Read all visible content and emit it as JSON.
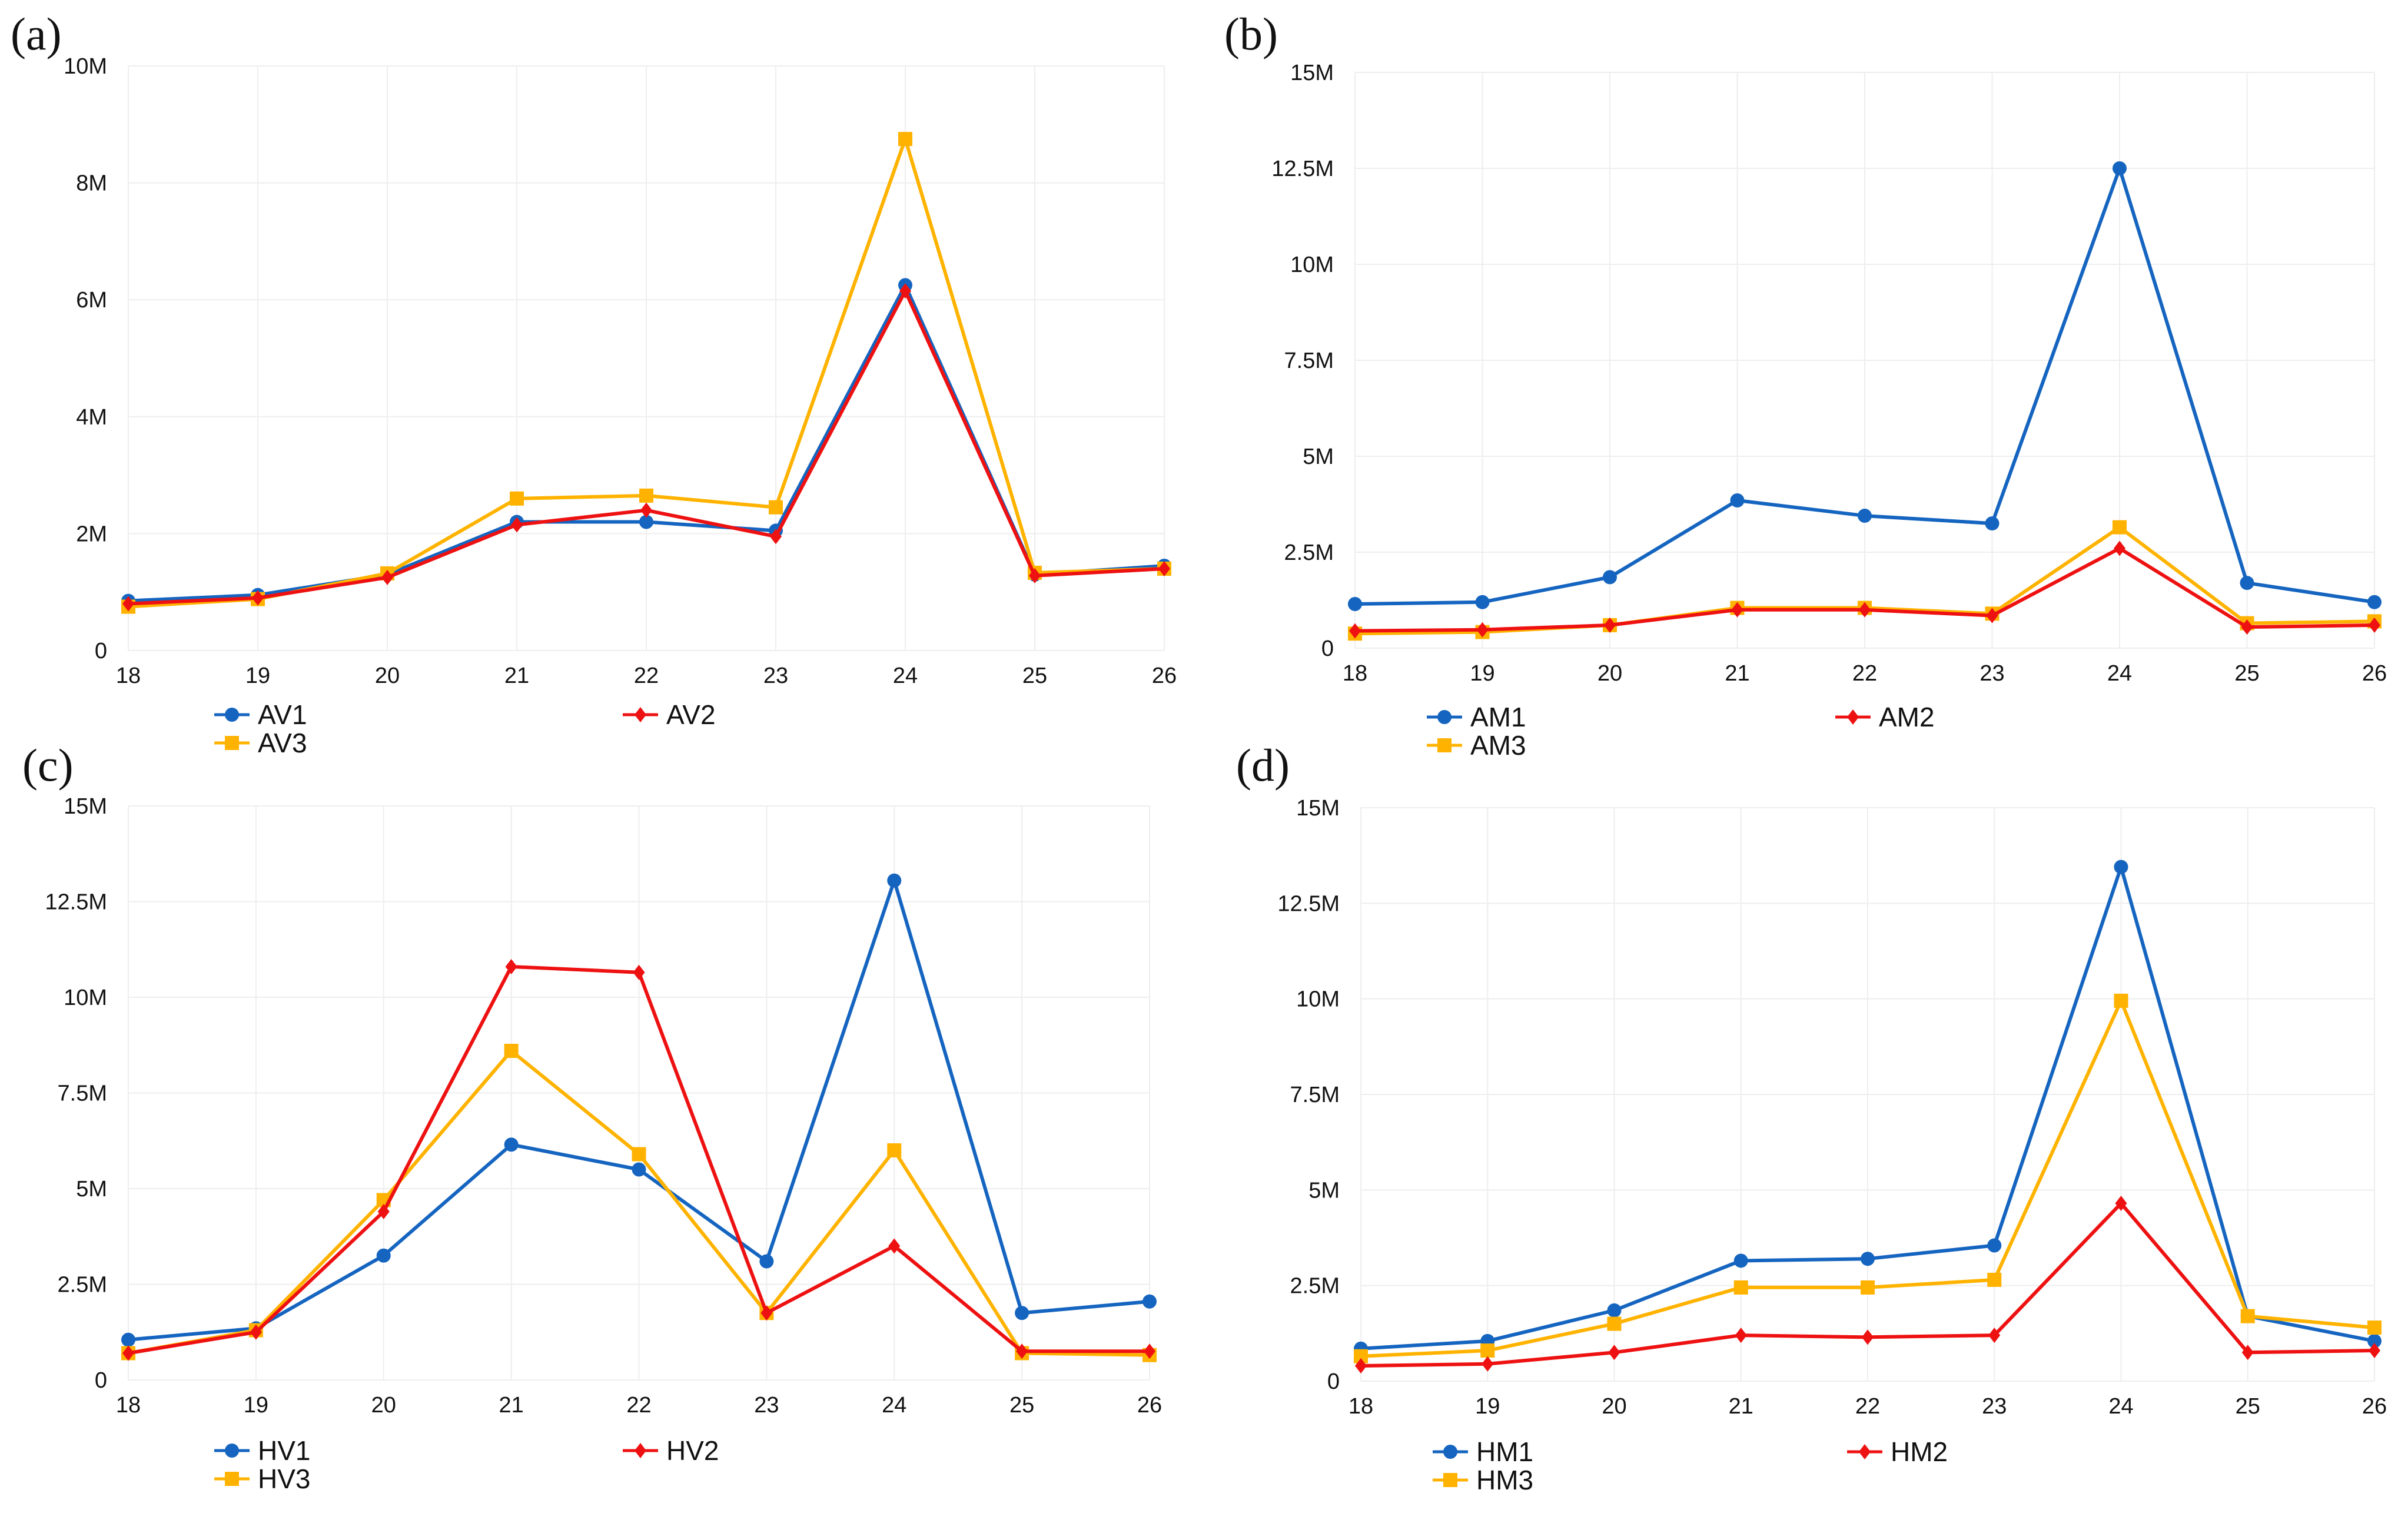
{
  "figure": {
    "panels": [
      "(a)",
      "(b)",
      "(c)",
      "(d)"
    ]
  },
  "colors": {
    "series1": "#1565c0",
    "series2": "#ee1111",
    "series3": "#ffb300"
  },
  "chart_data": [
    {
      "panel": "(a)",
      "type": "line",
      "x": [
        18,
        19,
        20,
        21,
        22,
        23,
        24,
        25,
        26
      ],
      "x_tick_labels": [
        "18",
        "19",
        "20",
        "21",
        "22",
        "23",
        "24",
        "25",
        "26"
      ],
      "ylim": [
        0,
        10000000
      ],
      "yticks": [
        0,
        2000000,
        4000000,
        6000000,
        8000000,
        10000000
      ],
      "ytick_labels": [
        "0",
        "2M",
        "4M",
        "6M",
        "8M",
        "10M"
      ],
      "legend_position": "bottom",
      "series": [
        {
          "name": "AV1",
          "marker": "circle",
          "color": "#1565c0",
          "values": [
            850000,
            950000,
            1300000,
            2200000,
            2200000,
            2050000,
            6250000,
            1300000,
            1450000
          ]
        },
        {
          "name": "AV2",
          "marker": "diamond",
          "color": "#ee1111",
          "values": [
            800000,
            900000,
            1250000,
            2150000,
            2400000,
            1950000,
            6150000,
            1280000,
            1400000
          ]
        },
        {
          "name": "AV3",
          "marker": "square",
          "color": "#ffb300",
          "values": [
            750000,
            880000,
            1320000,
            2600000,
            2650000,
            2450000,
            8750000,
            1330000,
            1400000
          ]
        }
      ]
    },
    {
      "panel": "(b)",
      "type": "line",
      "x": [
        18,
        19,
        20,
        21,
        22,
        23,
        24,
        25,
        26
      ],
      "x_tick_labels": [
        "18",
        "19",
        "20",
        "21",
        "22",
        "23",
        "24",
        "25",
        "26"
      ],
      "ylim": [
        0,
        15000000
      ],
      "yticks": [
        0,
        2500000,
        5000000,
        7500000,
        10000000,
        12500000,
        15000000
      ],
      "ytick_labels": [
        "0",
        "2.5M",
        "5M",
        "7.5M",
        "10M",
        "12.5M",
        "15M"
      ],
      "legend_position": "bottom",
      "series": [
        {
          "name": "AM1",
          "marker": "circle",
          "color": "#1565c0",
          "values": [
            1150000,
            1200000,
            1850000,
            3850000,
            3450000,
            3250000,
            12500000,
            1700000,
            1200000
          ]
        },
        {
          "name": "AM2",
          "marker": "diamond",
          "color": "#ee1111",
          "values": [
            450000,
            480000,
            600000,
            1000000,
            1000000,
            850000,
            2600000,
            550000,
            600000
          ]
        },
        {
          "name": "AM3",
          "marker": "square",
          "color": "#ffb300",
          "values": [
            380000,
            420000,
            600000,
            1050000,
            1050000,
            900000,
            3150000,
            650000,
            700000
          ]
        }
      ]
    },
    {
      "panel": "(c)",
      "type": "line",
      "x": [
        18,
        19,
        20,
        21,
        22,
        23,
        24,
        25,
        26
      ],
      "x_tick_labels": [
        "18",
        "19",
        "20",
        "21",
        "22",
        "23",
        "24",
        "25",
        "26"
      ],
      "ylim": [
        0,
        15000000
      ],
      "yticks": [
        0,
        2500000,
        5000000,
        7500000,
        10000000,
        12500000,
        15000000
      ],
      "ytick_labels": [
        "0",
        "2.5M",
        "5M",
        "7.5M",
        "10M",
        "12.5M",
        "15M"
      ],
      "legend_position": "bottom",
      "series": [
        {
          "name": "HV1",
          "marker": "circle",
          "color": "#1565c0",
          "values": [
            1050000,
            1350000,
            3250000,
            6150000,
            5500000,
            3100000,
            13050000,
            1750000,
            2050000
          ]
        },
        {
          "name": "HV2",
          "marker": "diamond",
          "color": "#ee1111",
          "values": [
            700000,
            1250000,
            4400000,
            10800000,
            10650000,
            1750000,
            3500000,
            750000,
            750000
          ]
        },
        {
          "name": "HV3",
          "marker": "square",
          "color": "#ffb300",
          "values": [
            700000,
            1300000,
            4700000,
            8600000,
            5900000,
            1750000,
            6000000,
            700000,
            650000
          ]
        }
      ]
    },
    {
      "panel": "(d)",
      "type": "line",
      "x": [
        18,
        19,
        20,
        21,
        22,
        23,
        24,
        25,
        26
      ],
      "x_tick_labels": [
        "18",
        "19",
        "20",
        "21",
        "22",
        "23",
        "24",
        "25",
        "26"
      ],
      "ylim": [
        0,
        15000000
      ],
      "yticks": [
        0,
        2500000,
        5000000,
        7500000,
        10000000,
        12500000,
        15000000
      ],
      "ytick_labels": [
        "0",
        "2.5M",
        "5M",
        "7.5M",
        "10M",
        "12.5M",
        "15M"
      ],
      "legend_position": "bottom",
      "series": [
        {
          "name": "HM1",
          "marker": "circle",
          "color": "#1565c0",
          "values": [
            850000,
            1050000,
            1850000,
            3150000,
            3200000,
            3550000,
            13450000,
            1700000,
            1050000
          ]
        },
        {
          "name": "HM2",
          "marker": "diamond",
          "color": "#ee1111",
          "values": [
            400000,
            450000,
            750000,
            1200000,
            1150000,
            1200000,
            4650000,
            750000,
            800000
          ]
        },
        {
          "name": "HM3",
          "marker": "square",
          "color": "#ffb300",
          "values": [
            650000,
            800000,
            1500000,
            2450000,
            2450000,
            2650000,
            9950000,
            1700000,
            1400000
          ]
        }
      ]
    }
  ]
}
